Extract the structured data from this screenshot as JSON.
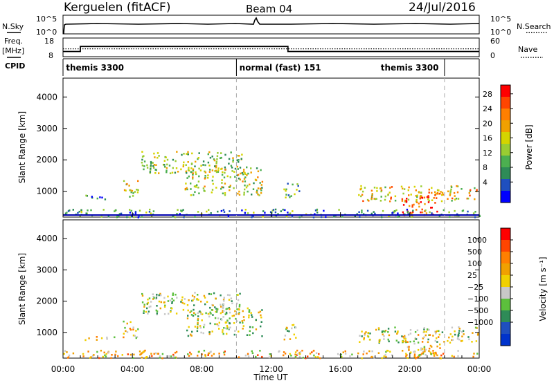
{
  "header": {
    "station": "Kerguelen (fitACF)",
    "beam": "Beam 04",
    "date": "24/Jul/2016"
  },
  "noise_panel": {
    "left_label": "N.Sky",
    "left_ticks": [
      "10^5",
      "10^0"
    ],
    "right_ticks": [
      "10^5",
      "10^0"
    ],
    "right_label": "N.Search"
  },
  "freq_panel": {
    "left_label_1": "Freq.",
    "left_label_2": "[MHz]",
    "left_ticks": [
      "18",
      "8"
    ],
    "right_ticks": [
      "60",
      "0"
    ],
    "right_label": "Nave",
    "freq_step": {
      "x_hours": [
        0,
        1.0,
        1.0,
        12.97,
        12.97,
        24
      ],
      "y_mhz": [
        10.5,
        10.5,
        13.3,
        13.3,
        10.5,
        10.5
      ]
    },
    "nave_level": 12.0
  },
  "cpid_panel": {
    "label": "CPID",
    "segments": [
      {
        "start_h": 0,
        "end_h": 10,
        "text": "themis 3300"
      },
      {
        "start_h": 10,
        "end_h": 22,
        "text": "normal (fast) 151"
      },
      {
        "start_h": 22,
        "end_h": 24,
        "text": "themis 3300"
      }
    ],
    "display_segments": [
      {
        "x_hour": 0.05,
        "text": "themis 3300"
      },
      {
        "x_hour": 10.05,
        "text": "normal (fast) 151"
      },
      {
        "x_hour": 18.2,
        "text": "themis 3300"
      }
    ],
    "dividers_h": [
      10.0,
      22.0
    ]
  },
  "chart_data": [
    {
      "type": "heatmap",
      "panel": "power",
      "ylabel": "Slant Range [km]",
      "yticks": [
        "1000",
        "2000",
        "3000",
        "4000"
      ],
      "ylim": [
        180,
        4600
      ],
      "xlim_hours": [
        0,
        24
      ],
      "colorbar": {
        "label": "Power [dB]",
        "ticks": [
          "4",
          "8",
          "12",
          "16",
          "20",
          "24",
          "28"
        ],
        "colors": [
          "#0000ff",
          "#1f4fbf",
          "#2e8b57",
          "#4caf50",
          "#9acd32",
          "#d4d400",
          "#f0a000",
          "#ff7f00",
          "#ff4500",
          "#ff0000"
        ]
      },
      "echo_regions": [
        {
          "h0": 1.2,
          "h1": 3.0,
          "r0": 760,
          "r1": 900,
          "level": 0.25
        },
        {
          "h0": 3.4,
          "h1": 4.3,
          "r0": 800,
          "r1": 1400,
          "level": 0.55
        },
        {
          "h0": 4.5,
          "h1": 10.3,
          "r0": 1600,
          "r1": 2300,
          "level": 0.45
        },
        {
          "h0": 7.0,
          "h1": 11.5,
          "r0": 900,
          "r1": 1800,
          "level": 0.5
        },
        {
          "h0": 12.7,
          "h1": 13.6,
          "r0": 800,
          "r1": 1300,
          "level": 0.35
        },
        {
          "h0": 17.0,
          "h1": 23.9,
          "r0": 700,
          "r1": 1200,
          "level": 0.6
        },
        {
          "h0": 19.5,
          "h1": 21.7,
          "r0": 250,
          "r1": 1000,
          "level": 0.85
        },
        {
          "h0": 0.0,
          "h1": 24.0,
          "r0": 200,
          "r1": 450,
          "level": 0.3
        }
      ]
    },
    {
      "type": "heatmap",
      "panel": "velocity",
      "ylabel": "Slant Range [km]",
      "yticks": [
        "1000",
        "2000",
        "3000",
        "4000"
      ],
      "ylim": [
        180,
        4600
      ],
      "xlim_hours": [
        0,
        24
      ],
      "colorbar": {
        "label": "Velocity [m s⁻¹]",
        "ticks": [
          "1000",
          "500",
          "100",
          "25",
          "−25",
          "−100",
          "−500",
          "−1000"
        ],
        "colors": [
          "#0033cc",
          "#1f4fbf",
          "#2e8b57",
          "#5cc03c",
          "#c8c8c8",
          "#f0d000",
          "#f0a000",
          "#ff7f00",
          "#ff4500",
          "#ff0000"
        ]
      },
      "echo_regions": [
        {
          "h0": 1.2,
          "h1": 3.0,
          "r0": 760,
          "r1": 900,
          "level": 0.6
        },
        {
          "h0": 3.4,
          "h1": 4.3,
          "r0": 800,
          "r1": 1400,
          "level": 0.5
        },
        {
          "h0": 4.5,
          "h1": 10.3,
          "r0": 1600,
          "r1": 2300,
          "level": 0.45
        },
        {
          "h0": 7.0,
          "h1": 11.5,
          "r0": 900,
          "r1": 1800,
          "level": 0.45
        },
        {
          "h0": 12.7,
          "h1": 13.6,
          "r0": 800,
          "r1": 1300,
          "level": 0.45
        },
        {
          "h0": 17.0,
          "h1": 23.9,
          "r0": 700,
          "r1": 1200,
          "level": 0.45
        },
        {
          "h0": 19.5,
          "h1": 21.7,
          "r0": 250,
          "r1": 1000,
          "level": 0.55
        },
        {
          "h0": 0.0,
          "h1": 24.0,
          "r0": 200,
          "r1": 450,
          "level": 0.6
        }
      ]
    }
  ],
  "x_axis": {
    "ticks": [
      "00:00",
      "04:00",
      "08:00",
      "12:00",
      "16:00",
      "20:00",
      "00:00"
    ],
    "label": "Time UT"
  }
}
